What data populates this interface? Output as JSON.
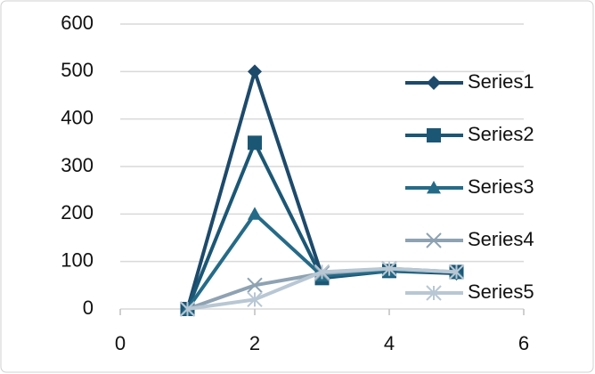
{
  "chart_data": {
    "type": "scatter-line",
    "x": [
      1,
      2,
      3,
      4,
      5
    ],
    "series": [
      {
        "name": "Series1",
        "color": "#1d4a6b",
        "marker": "diamond",
        "values": [
          0,
          500,
          70,
          80,
          75
        ]
      },
      {
        "name": "Series2",
        "color": "#1b5775",
        "marker": "square",
        "values": [
          0,
          350,
          65,
          80,
          78
        ]
      },
      {
        "name": "Series3",
        "color": "#256b88",
        "marker": "triangle",
        "values": [
          0,
          200,
          70,
          80,
          78
        ]
      },
      {
        "name": "Series4",
        "color": "#8ea2b2",
        "marker": "x",
        "values": [
          0,
          50,
          75,
          85,
          78
        ]
      },
      {
        "name": "Series5",
        "color": "#b8c7d3",
        "marker": "star",
        "values": [
          0,
          20,
          78,
          85,
          78
        ]
      }
    ],
    "xlim": [
      0,
      6
    ],
    "xticks": [
      0,
      2,
      4,
      6
    ],
    "ylim": [
      0,
      600
    ],
    "yticks": [
      0,
      100,
      200,
      300,
      400,
      500,
      600
    ],
    "grid": true,
    "legend": "right"
  }
}
